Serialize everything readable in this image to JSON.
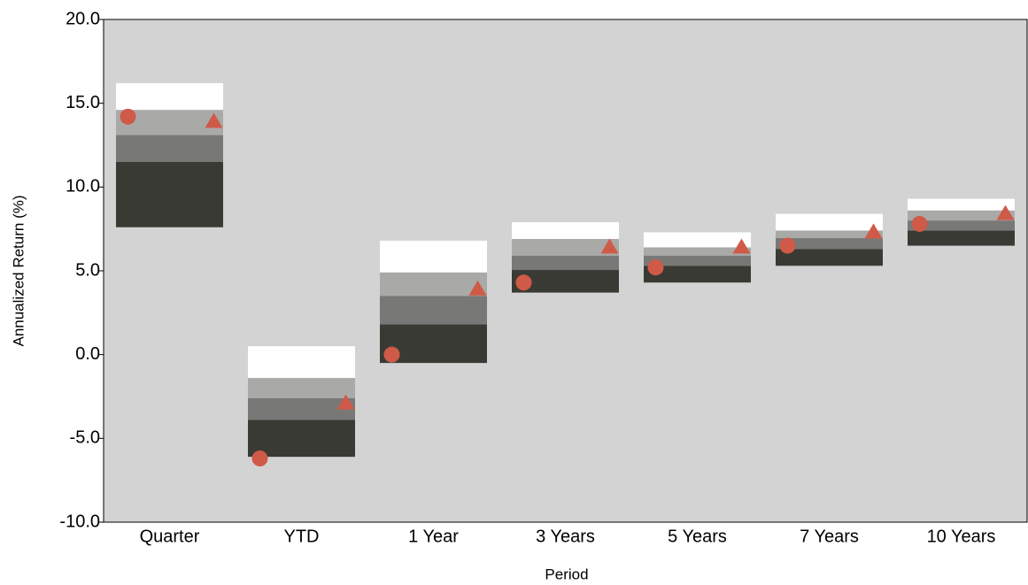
{
  "chart_data": {
    "type": "floating-bar",
    "y_label": "Annualized Return (%)",
    "x_label": "Period",
    "categories": [
      "Quarter",
      "YTD",
      "1 Year",
      "3 Years",
      "5 Years",
      "7 Years",
      "10 Years"
    ],
    "bands": [
      [
        16.2,
        14.6,
        13.1,
        11.5,
        7.6
      ],
      [
        0.5,
        -1.4,
        -2.6,
        -3.9,
        -6.1
      ],
      [
        6.8,
        4.9,
        3.5,
        1.8,
        -0.5
      ],
      [
        7.9,
        6.9,
        5.9,
        5.05,
        3.7
      ],
      [
        7.3,
        6.4,
        5.9,
        5.3,
        4.3
      ],
      [
        8.4,
        7.4,
        6.95,
        6.3,
        5.3
      ],
      [
        9.3,
        8.6,
        8.0,
        7.4,
        6.5
      ]
    ],
    "band_colors": [
      "#ffffff",
      "#a9a9a7",
      "#787876",
      "#3a3a35"
    ],
    "markers": [
      {
        "shape": "circle",
        "color": "#d05a48",
        "values": [
          14.2,
          -6.2,
          0.0,
          4.3,
          5.2,
          6.5,
          7.8
        ]
      },
      {
        "shape": "triangle",
        "color": "#d05a48",
        "values": [
          13.9,
          -2.9,
          3.9,
          6.4,
          6.4,
          7.3,
          8.4
        ]
      }
    ],
    "background": "#d3d3d3",
    "ylim": [
      -10,
      20
    ],
    "yticks": [
      {
        "value": -10,
        "label": "-10.0"
      },
      {
        "value": -5,
        "label": "-5.0"
      },
      {
        "value": 0,
        "label": "0.0"
      },
      {
        "value": 5,
        "label": "5.0"
      },
      {
        "value": 10,
        "label": "10.0"
      },
      {
        "value": 15,
        "label": "15.0"
      },
      {
        "value": 20,
        "label": "20.0"
      }
    ]
  }
}
